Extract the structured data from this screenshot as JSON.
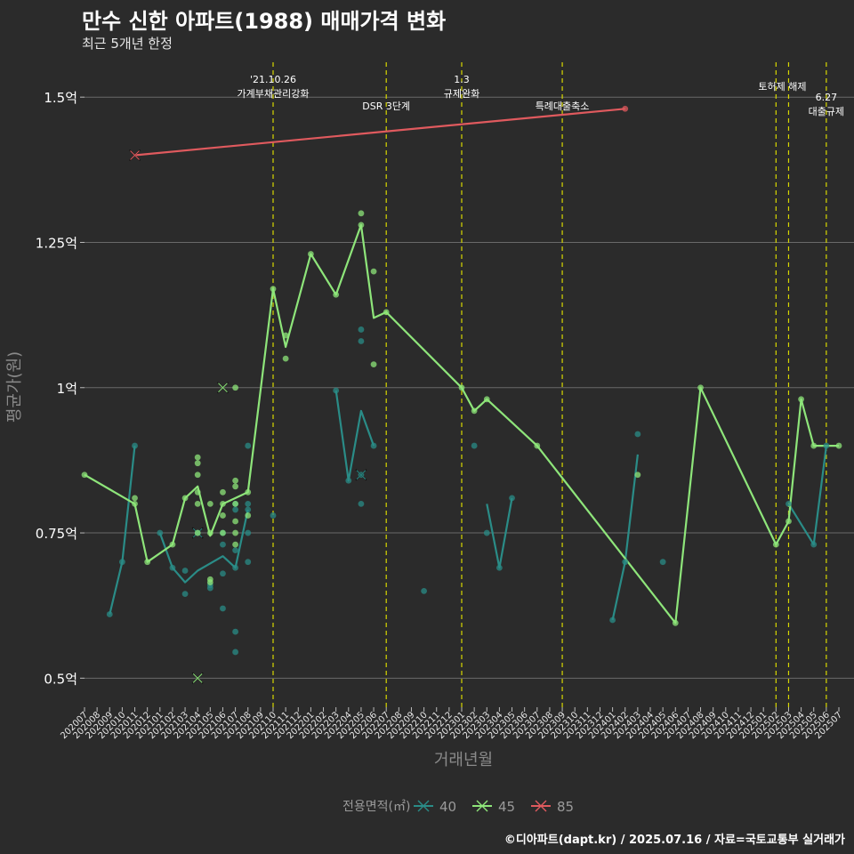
{
  "title": "만수 신한 아파트(1988) 매매가격 변화",
  "subtitle": "최근 5개년 한정",
  "footer": "©디아파트(dapt.kr) / 2025.07.16 / 자료=국토교통부 실거래가",
  "chart_data": {
    "type": "line",
    "xlabel": "거래년월",
    "ylabel": "평균가(원)",
    "y_ticks": [
      0.5,
      0.75,
      1.0,
      1.25,
      1.5
    ],
    "y_tick_labels": [
      "0.5억",
      "0.75억",
      "1억",
      "1.25억",
      "1.5억"
    ],
    "ylim": [
      0.45,
      1.56
    ],
    "categories": [
      "202007",
      "202008",
      "202009",
      "202010",
      "202011",
      "202012",
      "202101",
      "202102",
      "202103",
      "202104",
      "202105",
      "202106",
      "202107",
      "202108",
      "202109",
      "202110",
      "202111",
      "202112",
      "202201",
      "202202",
      "202203",
      "202204",
      "202205",
      "202206",
      "202207",
      "202208",
      "202209",
      "202210",
      "202211",
      "202212",
      "202301",
      "202302",
      "202303",
      "202304",
      "202305",
      "202306",
      "202307",
      "202308",
      "202309",
      "202310",
      "202311",
      "202312",
      "202401",
      "202402",
      "202403",
      "202404",
      "202405",
      "202406",
      "202407",
      "202408",
      "202409",
      "202410",
      "202411",
      "202412",
      "202501",
      "202502",
      "202503",
      "202504",
      "202505",
      "202506",
      "202507"
    ],
    "legend_title": "전용면적(㎡)",
    "legend_position": "bottom",
    "series": [
      {
        "name": "40",
        "color": "#2a8c87",
        "line": [
          [
            "202009",
            0.61
          ],
          [
            "202010",
            0.7
          ],
          [
            "202011",
            0.9
          ],
          null,
          [
            "202101",
            0.75
          ],
          [
            "202102",
            0.69
          ],
          [
            "202103",
            0.665
          ],
          [
            "202104",
            0.685
          ],
          [
            "202106",
            0.71
          ],
          [
            "202107",
            0.69
          ],
          [
            "202108",
            0.79
          ],
          null,
          [
            "202203",
            0.995
          ],
          [
            "202204",
            0.84
          ],
          [
            "202205",
            0.96
          ],
          [
            "202206",
            0.9
          ],
          null,
          [
            "202303",
            0.8
          ],
          [
            "202304",
            0.69
          ],
          [
            "202305",
            0.81
          ],
          null,
          [
            "202401",
            0.6
          ],
          [
            "202402",
            0.7
          ],
          [
            "202403",
            0.885
          ],
          null,
          [
            "202503",
            0.8
          ],
          [
            "202505",
            0.73
          ],
          [
            "202506",
            0.9
          ]
        ],
        "points": [
          [
            "202009",
            0.61
          ],
          [
            "202010",
            0.7
          ],
          [
            "202011",
            0.9
          ],
          [
            "202101",
            0.75
          ],
          [
            "202102",
            0.69
          ],
          [
            "202103",
            0.645
          ],
          [
            "202103",
            0.685
          ],
          [
            "202104",
            0.75
          ],
          [
            "202105",
            0.655
          ],
          [
            "202105",
            0.66
          ],
          [
            "202106",
            0.62
          ],
          [
            "202106",
            0.68
          ],
          [
            "202106",
            0.73
          ],
          [
            "202106",
            0.75
          ],
          [
            "202107",
            0.545
          ],
          [
            "202107",
            0.58
          ],
          [
            "202107",
            0.69
          ],
          [
            "202107",
            0.72
          ],
          [
            "202107",
            0.79
          ],
          [
            "202107",
            0.8
          ],
          [
            "202108",
            0.7
          ],
          [
            "202108",
            0.75
          ],
          [
            "202108",
            0.79
          ],
          [
            "202108",
            0.8
          ],
          [
            "202108",
            0.9
          ],
          [
            "202110",
            0.78
          ],
          [
            "202203",
            0.995
          ],
          [
            "202204",
            0.84
          ],
          [
            "202205",
            0.8
          ],
          [
            "202205",
            0.85
          ],
          [
            "202205",
            1.08
          ],
          [
            "202205",
            1.1
          ],
          [
            "202206",
            0.9
          ],
          [
            "202210",
            0.65
          ],
          [
            "202302",
            0.9
          ],
          [
            "202303",
            0.75
          ],
          [
            "202304",
            0.69
          ],
          [
            "202305",
            0.81
          ],
          [
            "202401",
            0.6
          ],
          [
            "202402",
            0.7
          ],
          [
            "202403",
            0.92
          ],
          [
            "202405",
            0.7
          ],
          [
            "202503",
            0.8
          ],
          [
            "202505",
            0.73
          ],
          [
            "202506",
            0.9
          ]
        ],
        "crosses": [
          [
            "202104",
            0.75
          ],
          [
            "202205",
            0.85
          ]
        ]
      },
      {
        "name": "45",
        "color": "#8ee57a",
        "line": [
          [
            "202007",
            0.85
          ],
          [
            "202011",
            0.8
          ],
          [
            "202012",
            0.7
          ],
          [
            "202102",
            0.73
          ],
          [
            "202103",
            0.81
          ],
          [
            "202104",
            0.83
          ],
          [
            "202105",
            0.745
          ],
          [
            "202106",
            0.8
          ],
          [
            "202107",
            0.81
          ],
          [
            "202108",
            0.82
          ],
          [
            "202110",
            1.17
          ],
          [
            "202111",
            1.07
          ],
          [
            "202201",
            1.23
          ],
          [
            "202203",
            1.16
          ],
          [
            "202205",
            1.28
          ],
          [
            "202206",
            1.12
          ],
          [
            "202207",
            1.13
          ],
          [
            "202301",
            1.0
          ],
          [
            "202302",
            0.96
          ],
          [
            "202303",
            0.98
          ],
          [
            "202307",
            0.9
          ],
          [
            "202406",
            0.595
          ],
          [
            "202408",
            1.0
          ],
          [
            "202502",
            0.73
          ],
          [
            "202503",
            0.77
          ],
          [
            "202504",
            0.98
          ],
          [
            "202505",
            0.9
          ],
          [
            "202507",
            0.9
          ]
        ],
        "points": [
          [
            "202007",
            0.85
          ],
          [
            "202011",
            0.8
          ],
          [
            "202011",
            0.81
          ],
          [
            "202012",
            0.7
          ],
          [
            "202102",
            0.73
          ],
          [
            "202103",
            0.81
          ],
          [
            "202104",
            0.75
          ],
          [
            "202104",
            0.8
          ],
          [
            "202104",
            0.82
          ],
          [
            "202104",
            0.85
          ],
          [
            "202104",
            0.87
          ],
          [
            "202104",
            0.88
          ],
          [
            "202105",
            0.665
          ],
          [
            "202105",
            0.67
          ],
          [
            "202105",
            0.75
          ],
          [
            "202105",
            0.8
          ],
          [
            "202106",
            0.75
          ],
          [
            "202106",
            0.78
          ],
          [
            "202106",
            0.8
          ],
          [
            "202106",
            0.82
          ],
          [
            "202107",
            0.73
          ],
          [
            "202107",
            0.75
          ],
          [
            "202107",
            0.77
          ],
          [
            "202107",
            0.8
          ],
          [
            "202107",
            0.83
          ],
          [
            "202107",
            0.84
          ],
          [
            "202107",
            1.0
          ],
          [
            "202108",
            0.78
          ],
          [
            "202108",
            0.82
          ],
          [
            "202110",
            1.17
          ],
          [
            "202111",
            1.05
          ],
          [
            "202111",
            1.09
          ],
          [
            "202201",
            1.23
          ],
          [
            "202203",
            1.16
          ],
          [
            "202205",
            1.28
          ],
          [
            "202205",
            1.3
          ],
          [
            "202206",
            1.04
          ],
          [
            "202206",
            1.2
          ],
          [
            "202207",
            1.13
          ],
          [
            "202301",
            1.0
          ],
          [
            "202302",
            0.96
          ],
          [
            "202303",
            0.98
          ],
          [
            "202307",
            0.9
          ],
          [
            "202403",
            0.85
          ],
          [
            "202406",
            0.595
          ],
          [
            "202408",
            1.0
          ],
          [
            "202502",
            0.73
          ],
          [
            "202503",
            0.77
          ],
          [
            "202504",
            0.98
          ],
          [
            "202505",
            0.9
          ],
          [
            "202507",
            0.9
          ]
        ],
        "crosses": [
          [
            "202106",
            1.0
          ],
          [
            "202104",
            0.5
          ]
        ]
      },
      {
        "name": "85",
        "color": "#e05a5e",
        "line": [
          [
            "202011",
            1.4
          ],
          [
            "202402",
            1.48
          ]
        ],
        "points": [
          [
            "202402",
            1.48
          ]
        ],
        "crosses": [
          [
            "202011",
            1.4
          ]
        ]
      }
    ],
    "events": [
      {
        "x": "202110",
        "lines": [
          "'21.10.26",
          "가계부채관리강화"
        ],
        "label_row": "top"
      },
      {
        "x": "202207",
        "lines": [
          "DSR 3단계"
        ],
        "label_row": "low"
      },
      {
        "x": "202301",
        "lines": [
          "1.3",
          "규제완화"
        ],
        "label_row": "top"
      },
      {
        "x": "202309",
        "lines": [
          "특례대출축소"
        ],
        "label_row": "low"
      },
      {
        "x": "202502",
        "lines": [
          "토허제 해제"
        ],
        "label_row": "mid",
        "anchor": "202502.5"
      },
      {
        "x": "202503",
        "lines": [],
        "label_row": "none"
      },
      {
        "x": "202506",
        "lines": [
          "6.27",
          "대출규제"
        ],
        "label_row": "right"
      }
    ]
  }
}
